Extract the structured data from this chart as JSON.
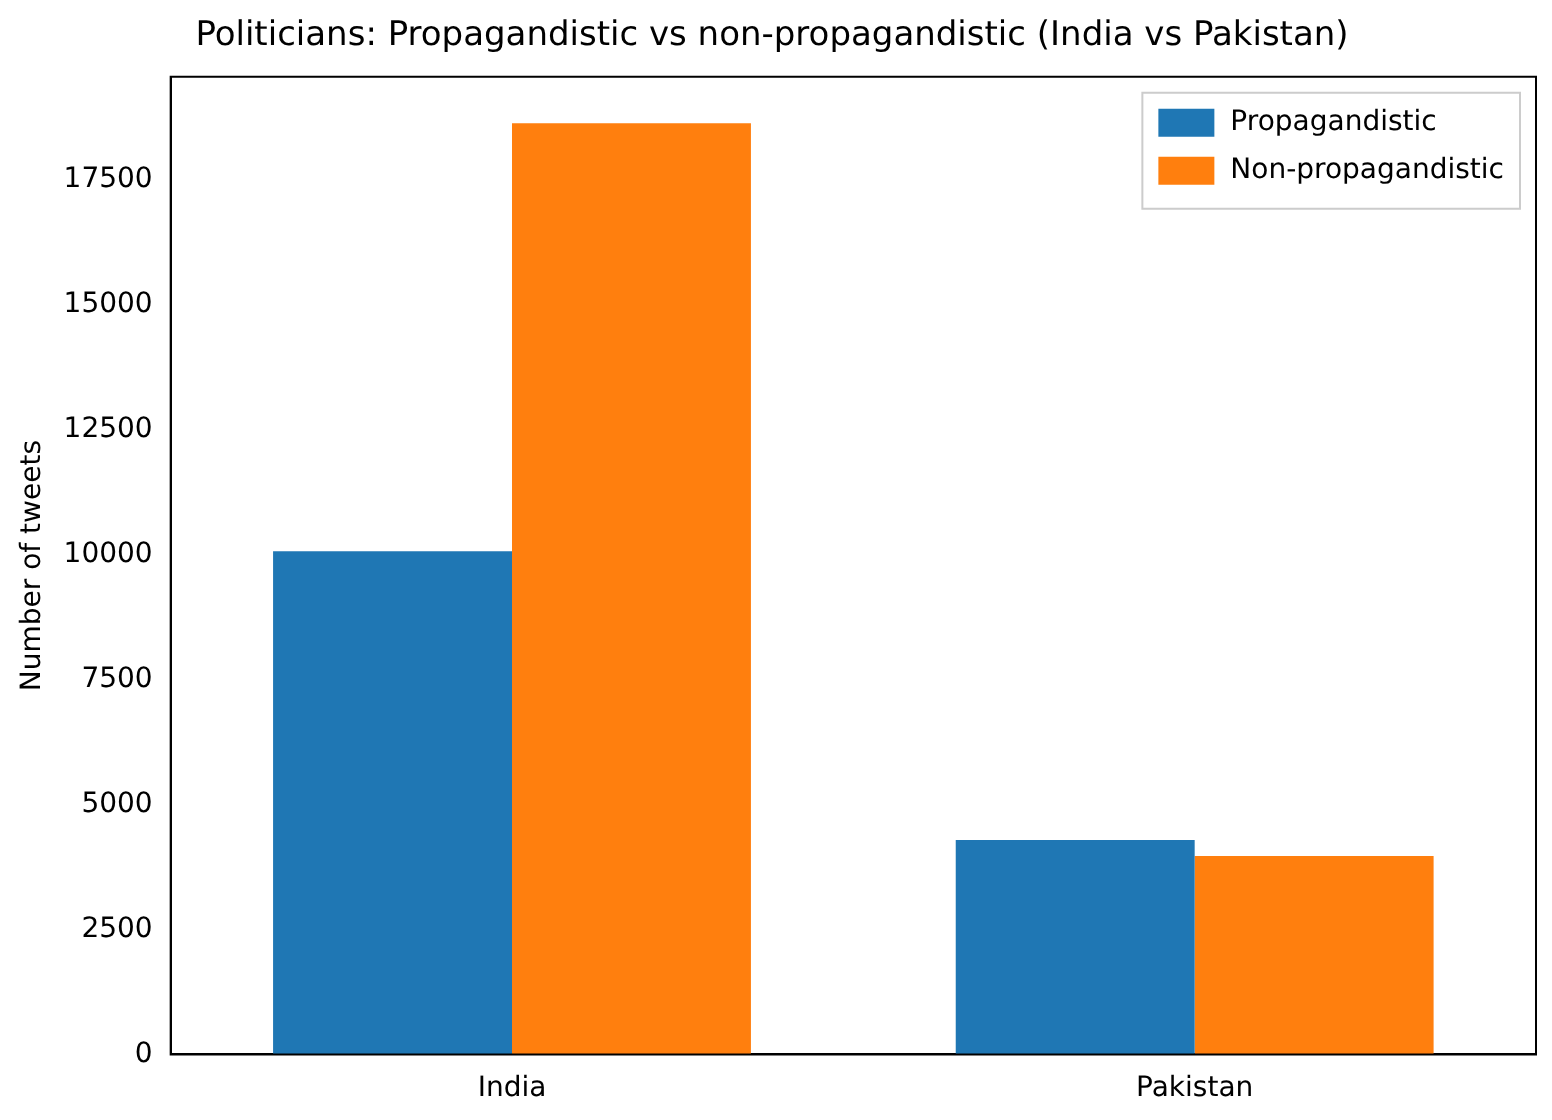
{
  "chart_data": {
    "type": "bar",
    "title": "Politicians: Propagandistic vs non-propagandistic (India vs Pakistan)",
    "ylabel": "Number of tweets",
    "categories": [
      "India",
      "Pakistan"
    ],
    "series": [
      {
        "name": "Propagandistic",
        "color": "#1f77b4",
        "values": [
          10060,
          4290
        ]
      },
      {
        "name": "Non-propagandistic",
        "color": "#ff7f0e",
        "values": [
          18620,
          3970
        ]
      }
    ],
    "ylim": [
      0,
      19550
    ],
    "yticks": [
      0,
      2500,
      5000,
      7500,
      10000,
      12500,
      15000,
      17500
    ],
    "grid": false,
    "legend": "top right"
  }
}
